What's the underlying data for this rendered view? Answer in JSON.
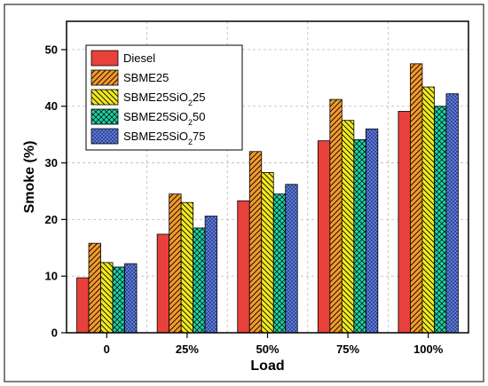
{
  "chart_data": {
    "type": "bar",
    "title": "",
    "xlabel": "Load",
    "ylabel": "Smoke (%)",
    "categories": [
      "0",
      "25%",
      "50%",
      "75%",
      "100%"
    ],
    "ylim": [
      0,
      55
    ],
    "yticks": [
      0,
      10,
      20,
      30,
      40,
      50
    ],
    "grid": "major, dashed",
    "legend_position": "top-left",
    "series": [
      {
        "name": "Diesel",
        "sub": "",
        "suffix": "",
        "values": [
          9.7,
          17.4,
          23.3,
          33.9,
          39.1
        ],
        "color": "#e8413c",
        "pattern": "solid"
      },
      {
        "name": "SBME25",
        "sub": "",
        "suffix": "",
        "values": [
          15.8,
          24.5,
          32.0,
          41.2,
          47.5
        ],
        "color": "#f39a2c",
        "pattern": "hatch-forward"
      },
      {
        "name": "SBME25SiO",
        "sub": "2",
        "suffix": "25",
        "values": [
          12.4,
          23.0,
          28.3,
          37.5,
          43.4
        ],
        "color": "#f2ea1e",
        "pattern": "hatch-backward"
      },
      {
        "name": "SBME25SiO",
        "sub": "2",
        "suffix": "50",
        "values": [
          11.6,
          18.5,
          24.5,
          34.1,
          40.0
        ],
        "color": "#1fd1a5",
        "pattern": "crosshatch"
      },
      {
        "name": "SBME25SiO",
        "sub": "2",
        "suffix": "75",
        "values": [
          12.2,
          20.6,
          26.2,
          36.0,
          42.2
        ],
        "color": "#5b79e3",
        "pattern": "dots"
      }
    ]
  }
}
